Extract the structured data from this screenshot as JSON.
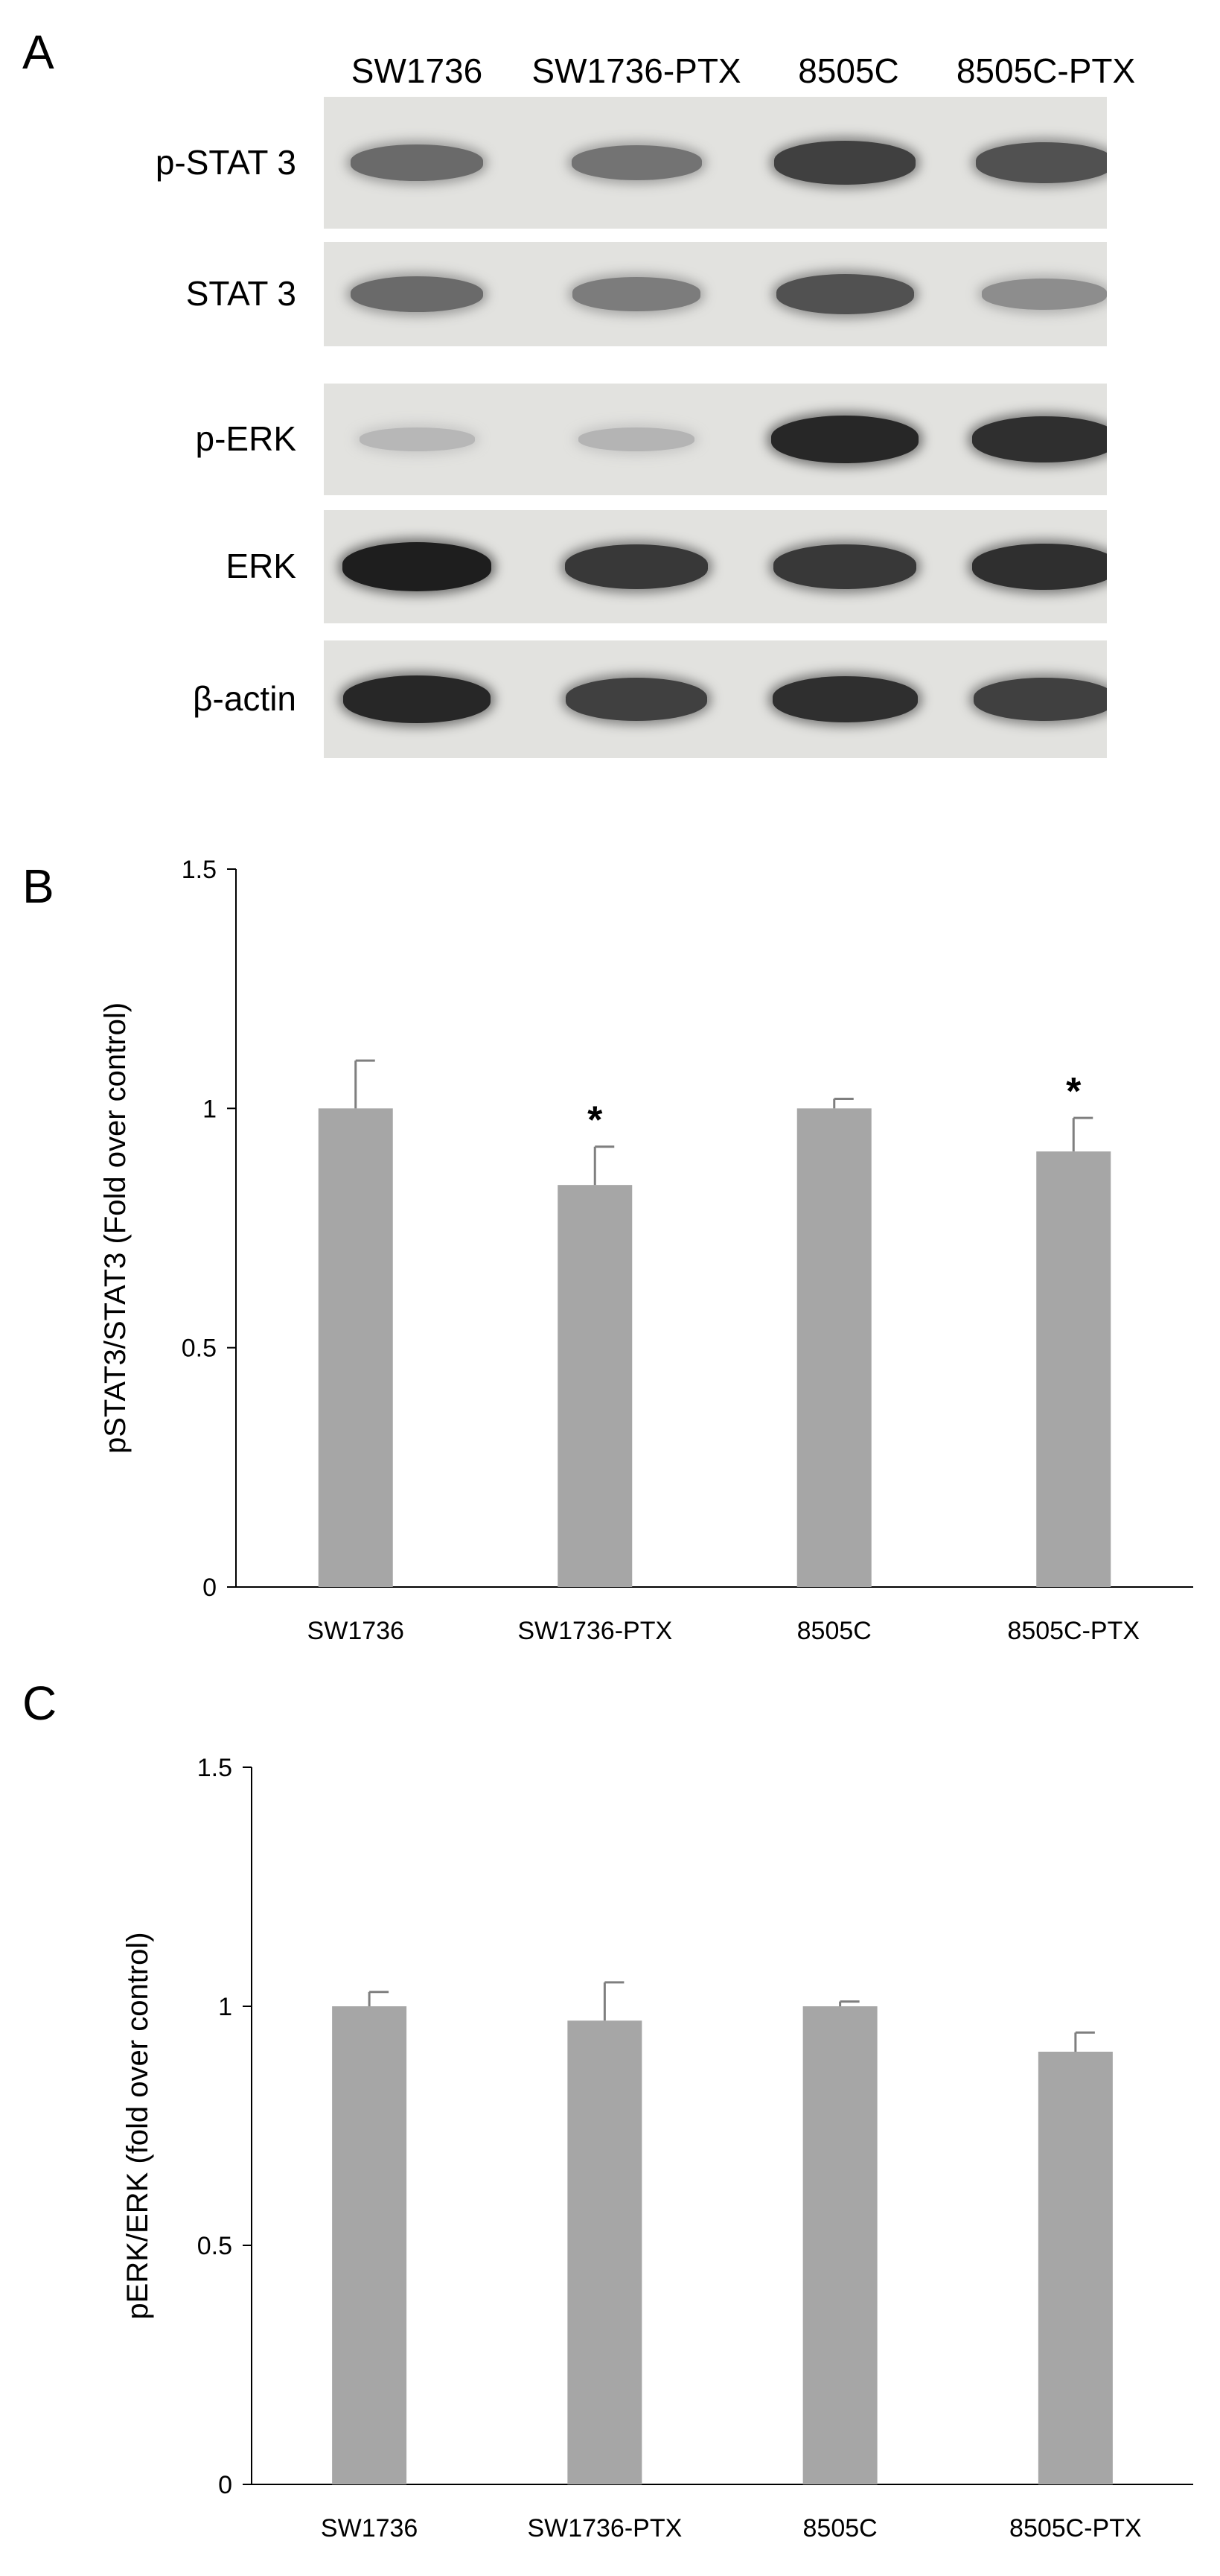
{
  "panel_a": {
    "letter": "A",
    "lanes": [
      "SW1736",
      "SW1736-PTX",
      "8505C",
      "8505C-PTX"
    ],
    "blots": [
      {
        "label": "p-STAT 3",
        "bands": [
          0.55,
          0.5,
          0.8,
          0.7
        ]
      },
      {
        "label": "STAT 3",
        "bands": [
          0.55,
          0.45,
          0.7,
          0.35
        ]
      },
      {
        "label": "p-ERK",
        "bands": [
          0.1,
          0.12,
          0.95,
          0.9
        ]
      },
      {
        "label": "ERK",
        "bands": [
          1.0,
          0.85,
          0.85,
          0.9
        ]
      },
      {
        "label": "β-actin",
        "bands": [
          0.95,
          0.8,
          0.9,
          0.8
        ]
      }
    ]
  },
  "chart_data": [
    {
      "panel": "B",
      "type": "bar",
      "categories": [
        "SW1736",
        "SW1736-PTX",
        "8505C",
        "8505C-PTX"
      ],
      "values": [
        1.0,
        0.84,
        1.0,
        0.91
      ],
      "errors": [
        0.1,
        0.08,
        0.02,
        0.07
      ],
      "significance": [
        "",
        "*",
        "",
        "*"
      ],
      "ylabel": "pSTAT3/STAT3 (Fold over control)",
      "xlabel": "",
      "ylim": [
        0,
        1.5
      ],
      "yticks": [
        0,
        0.5,
        1,
        1.5
      ],
      "ytick_labels": [
        "0",
        "0.5",
        "1",
        "1.5"
      ],
      "bar_color": "#a6a6a6",
      "grid": false
    },
    {
      "panel": "C",
      "type": "bar",
      "categories": [
        "SW1736",
        "SW1736-PTX",
        "8505C",
        "8505C-PTX"
      ],
      "values": [
        1.0,
        0.97,
        1.0,
        0.905
      ],
      "errors": [
        0.03,
        0.08,
        0.01,
        0.04
      ],
      "significance": [
        "",
        "",
        "",
        ""
      ],
      "ylabel": "pERK/ERK (fold over control)",
      "xlabel": "",
      "ylim": [
        0,
        1.5
      ],
      "yticks": [
        0,
        0.5,
        1,
        1.5
      ],
      "ytick_labels": [
        "0",
        "0.5",
        "1",
        "1.5"
      ],
      "bar_color": "#a6a6a6",
      "grid": false
    }
  ]
}
